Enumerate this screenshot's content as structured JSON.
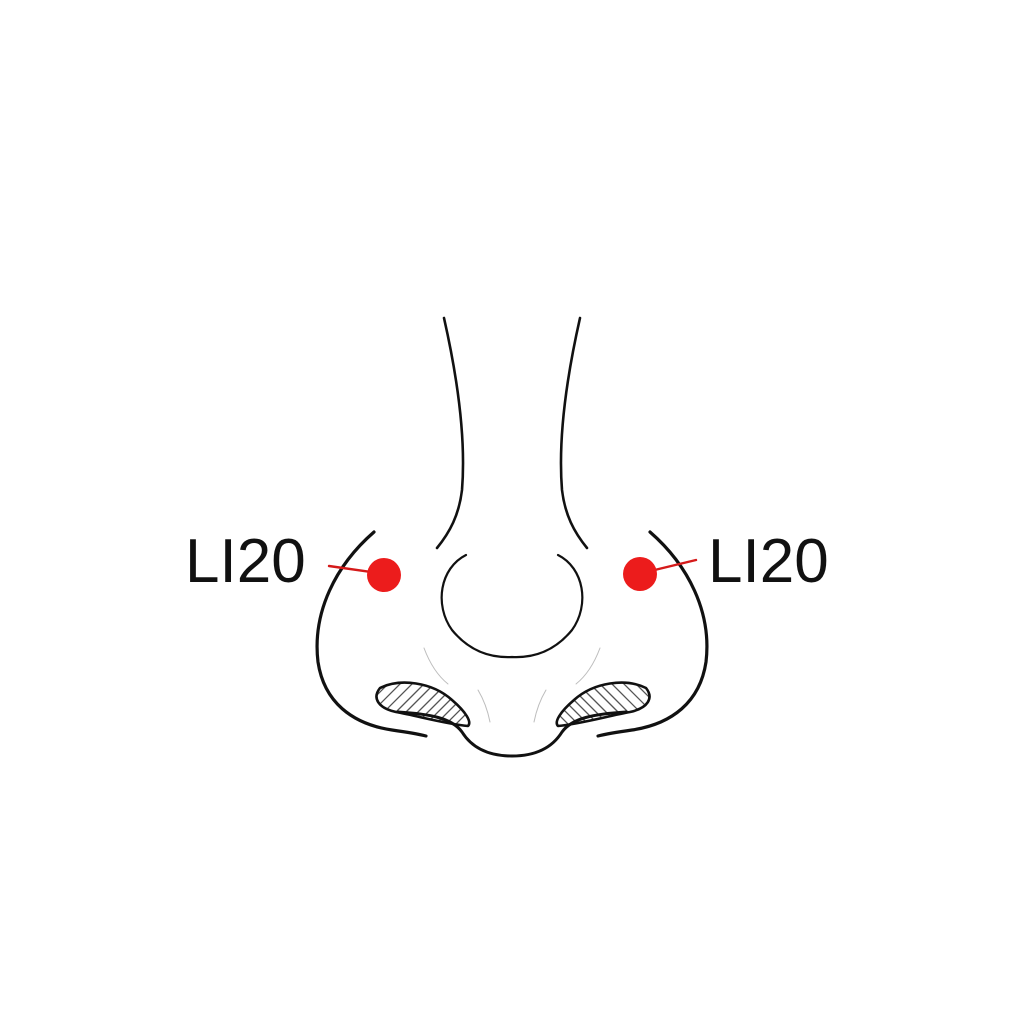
{
  "diagram": {
    "points": [
      {
        "side": "left",
        "label": "LI20"
      },
      {
        "side": "right",
        "label": "LI20"
      }
    ],
    "colors": {
      "point": "#ec1c1c",
      "leader": "#d51a1a",
      "line": "#111111"
    },
    "icons": {
      "point_marker": "red-dot-marker"
    }
  }
}
